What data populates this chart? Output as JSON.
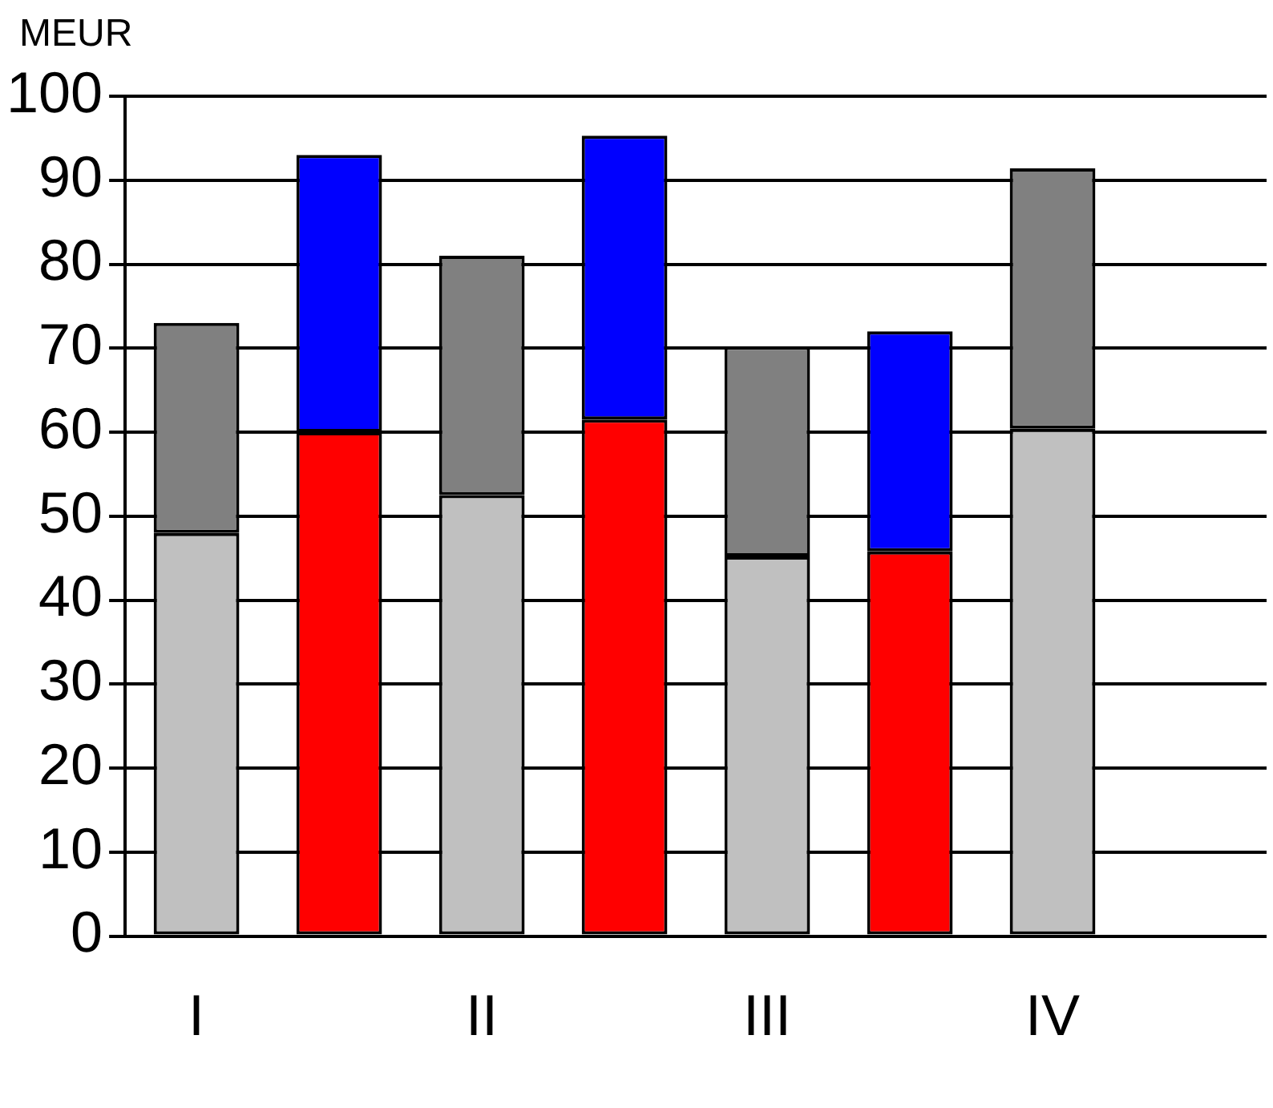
{
  "chart_data": {
    "type": "bar",
    "stacked": true,
    "ylabel": "MEUR",
    "categories": [
      "I",
      null,
      "II",
      null,
      "III",
      null,
      "IV",
      null
    ],
    "series": [
      {
        "color": "#c0c0c0",
        "values": [
          48,
          null,
          52.5,
          null,
          45.2,
          null,
          60.4,
          null
        ]
      },
      {
        "color": "#808080",
        "values": [
          25,
          null,
          28.5,
          null,
          25,
          null,
          31,
          null
        ]
      },
      {
        "color": "#ff0000",
        "values": [
          null,
          60,
          null,
          61.5,
          null,
          45.8,
          null,
          null
        ]
      },
      {
        "color": "#0000ff",
        "values": [
          null,
          33,
          null,
          33.8,
          null,
          26.2,
          null,
          null
        ]
      }
    ],
    "ylim": [
      0,
      100
    ],
    "yticks": [
      0,
      10,
      20,
      30,
      40,
      50,
      60,
      70,
      80,
      90,
      100
    ],
    "grid": "y",
    "legend": false
  }
}
